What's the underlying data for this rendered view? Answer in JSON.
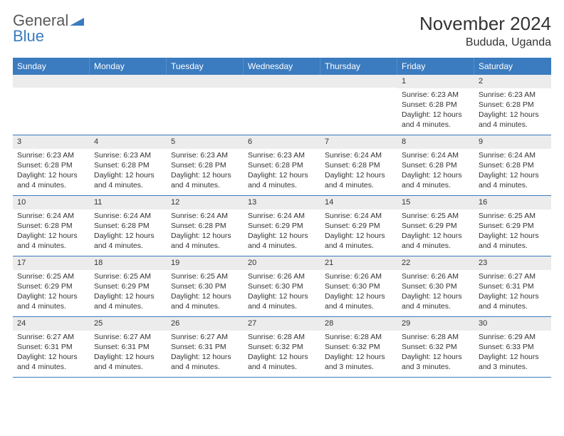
{
  "brand": {
    "general": "General",
    "blue": "Blue"
  },
  "header": {
    "month": "November 2024",
    "location": "Bududa, Uganda"
  },
  "colors": {
    "header_bg": "#3b7bbf",
    "header_fg": "#ffffff",
    "daynum_bg": "#ececec",
    "week_divider": "#3b7bbf",
    "text": "#333333",
    "logo_gray": "#5a5a5a",
    "logo_blue": "#3b7bbf"
  },
  "weekdays": [
    "Sunday",
    "Monday",
    "Tuesday",
    "Wednesday",
    "Thursday",
    "Friday",
    "Saturday"
  ],
  "weeks": [
    [
      {
        "n": "",
        "sunrise": "",
        "sunset": "",
        "daylight": ""
      },
      {
        "n": "",
        "sunrise": "",
        "sunset": "",
        "daylight": ""
      },
      {
        "n": "",
        "sunrise": "",
        "sunset": "",
        "daylight": ""
      },
      {
        "n": "",
        "sunrise": "",
        "sunset": "",
        "daylight": ""
      },
      {
        "n": "",
        "sunrise": "",
        "sunset": "",
        "daylight": ""
      },
      {
        "n": "1",
        "sunrise": "Sunrise: 6:23 AM",
        "sunset": "Sunset: 6:28 PM",
        "daylight": "Daylight: 12 hours and 4 minutes."
      },
      {
        "n": "2",
        "sunrise": "Sunrise: 6:23 AM",
        "sunset": "Sunset: 6:28 PM",
        "daylight": "Daylight: 12 hours and 4 minutes."
      }
    ],
    [
      {
        "n": "3",
        "sunrise": "Sunrise: 6:23 AM",
        "sunset": "Sunset: 6:28 PM",
        "daylight": "Daylight: 12 hours and 4 minutes."
      },
      {
        "n": "4",
        "sunrise": "Sunrise: 6:23 AM",
        "sunset": "Sunset: 6:28 PM",
        "daylight": "Daylight: 12 hours and 4 minutes."
      },
      {
        "n": "5",
        "sunrise": "Sunrise: 6:23 AM",
        "sunset": "Sunset: 6:28 PM",
        "daylight": "Daylight: 12 hours and 4 minutes."
      },
      {
        "n": "6",
        "sunrise": "Sunrise: 6:23 AM",
        "sunset": "Sunset: 6:28 PM",
        "daylight": "Daylight: 12 hours and 4 minutes."
      },
      {
        "n": "7",
        "sunrise": "Sunrise: 6:24 AM",
        "sunset": "Sunset: 6:28 PM",
        "daylight": "Daylight: 12 hours and 4 minutes."
      },
      {
        "n": "8",
        "sunrise": "Sunrise: 6:24 AM",
        "sunset": "Sunset: 6:28 PM",
        "daylight": "Daylight: 12 hours and 4 minutes."
      },
      {
        "n": "9",
        "sunrise": "Sunrise: 6:24 AM",
        "sunset": "Sunset: 6:28 PM",
        "daylight": "Daylight: 12 hours and 4 minutes."
      }
    ],
    [
      {
        "n": "10",
        "sunrise": "Sunrise: 6:24 AM",
        "sunset": "Sunset: 6:28 PM",
        "daylight": "Daylight: 12 hours and 4 minutes."
      },
      {
        "n": "11",
        "sunrise": "Sunrise: 6:24 AM",
        "sunset": "Sunset: 6:28 PM",
        "daylight": "Daylight: 12 hours and 4 minutes."
      },
      {
        "n": "12",
        "sunrise": "Sunrise: 6:24 AM",
        "sunset": "Sunset: 6:28 PM",
        "daylight": "Daylight: 12 hours and 4 minutes."
      },
      {
        "n": "13",
        "sunrise": "Sunrise: 6:24 AM",
        "sunset": "Sunset: 6:29 PM",
        "daylight": "Daylight: 12 hours and 4 minutes."
      },
      {
        "n": "14",
        "sunrise": "Sunrise: 6:24 AM",
        "sunset": "Sunset: 6:29 PM",
        "daylight": "Daylight: 12 hours and 4 minutes."
      },
      {
        "n": "15",
        "sunrise": "Sunrise: 6:25 AM",
        "sunset": "Sunset: 6:29 PM",
        "daylight": "Daylight: 12 hours and 4 minutes."
      },
      {
        "n": "16",
        "sunrise": "Sunrise: 6:25 AM",
        "sunset": "Sunset: 6:29 PM",
        "daylight": "Daylight: 12 hours and 4 minutes."
      }
    ],
    [
      {
        "n": "17",
        "sunrise": "Sunrise: 6:25 AM",
        "sunset": "Sunset: 6:29 PM",
        "daylight": "Daylight: 12 hours and 4 minutes."
      },
      {
        "n": "18",
        "sunrise": "Sunrise: 6:25 AM",
        "sunset": "Sunset: 6:29 PM",
        "daylight": "Daylight: 12 hours and 4 minutes."
      },
      {
        "n": "19",
        "sunrise": "Sunrise: 6:25 AM",
        "sunset": "Sunset: 6:30 PM",
        "daylight": "Daylight: 12 hours and 4 minutes."
      },
      {
        "n": "20",
        "sunrise": "Sunrise: 6:26 AM",
        "sunset": "Sunset: 6:30 PM",
        "daylight": "Daylight: 12 hours and 4 minutes."
      },
      {
        "n": "21",
        "sunrise": "Sunrise: 6:26 AM",
        "sunset": "Sunset: 6:30 PM",
        "daylight": "Daylight: 12 hours and 4 minutes."
      },
      {
        "n": "22",
        "sunrise": "Sunrise: 6:26 AM",
        "sunset": "Sunset: 6:30 PM",
        "daylight": "Daylight: 12 hours and 4 minutes."
      },
      {
        "n": "23",
        "sunrise": "Sunrise: 6:27 AM",
        "sunset": "Sunset: 6:31 PM",
        "daylight": "Daylight: 12 hours and 4 minutes."
      }
    ],
    [
      {
        "n": "24",
        "sunrise": "Sunrise: 6:27 AM",
        "sunset": "Sunset: 6:31 PM",
        "daylight": "Daylight: 12 hours and 4 minutes."
      },
      {
        "n": "25",
        "sunrise": "Sunrise: 6:27 AM",
        "sunset": "Sunset: 6:31 PM",
        "daylight": "Daylight: 12 hours and 4 minutes."
      },
      {
        "n": "26",
        "sunrise": "Sunrise: 6:27 AM",
        "sunset": "Sunset: 6:31 PM",
        "daylight": "Daylight: 12 hours and 4 minutes."
      },
      {
        "n": "27",
        "sunrise": "Sunrise: 6:28 AM",
        "sunset": "Sunset: 6:32 PM",
        "daylight": "Daylight: 12 hours and 4 minutes."
      },
      {
        "n": "28",
        "sunrise": "Sunrise: 6:28 AM",
        "sunset": "Sunset: 6:32 PM",
        "daylight": "Daylight: 12 hours and 3 minutes."
      },
      {
        "n": "29",
        "sunrise": "Sunrise: 6:28 AM",
        "sunset": "Sunset: 6:32 PM",
        "daylight": "Daylight: 12 hours and 3 minutes."
      },
      {
        "n": "30",
        "sunrise": "Sunrise: 6:29 AM",
        "sunset": "Sunset: 6:33 PM",
        "daylight": "Daylight: 12 hours and 3 minutes."
      }
    ]
  ]
}
